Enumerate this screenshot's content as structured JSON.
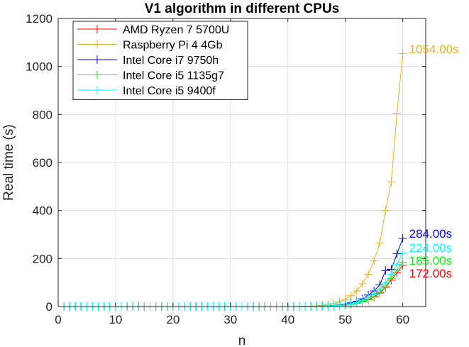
{
  "chart_data": {
    "type": "line",
    "title": "V1 algorithm in different CPUs",
    "xlabel": "n",
    "ylabel": "Real time (s)",
    "xlim": [
      0,
      64
    ],
    "ylim": [
      0,
      1200
    ],
    "xticks": [
      0,
      10,
      20,
      30,
      40,
      50,
      60
    ],
    "yticks": [
      0,
      200,
      400,
      600,
      800,
      1000,
      1200
    ],
    "grid": true,
    "legend_position": "top-left",
    "marker": "+",
    "series": [
      {
        "name": "AMD Ryzen 7 5700U",
        "color": "#ff0000",
        "x": [
          1,
          2,
          3,
          4,
          5,
          6,
          7,
          8,
          9,
          10,
          11,
          12,
          13,
          14,
          15,
          16,
          17,
          18,
          19,
          20,
          21,
          22,
          23,
          24,
          25,
          26,
          27,
          28,
          29,
          30,
          31,
          32,
          33,
          34,
          35,
          36,
          37,
          38,
          39,
          40,
          41,
          42,
          43,
          44,
          45,
          46,
          47,
          48,
          49,
          50,
          51,
          52,
          53,
          54,
          55,
          56,
          57,
          58,
          59,
          60
        ],
        "y": [
          0,
          0,
          0,
          0,
          0,
          0,
          0,
          0,
          0,
          0,
          0,
          0,
          0,
          0,
          0,
          0,
          0,
          0,
          0,
          0,
          0,
          0,
          0,
          0,
          0,
          0,
          0,
          0,
          0,
          0,
          0,
          0,
          0,
          0,
          0,
          0,
          0,
          0,
          0,
          0,
          0,
          0,
          0.4,
          0.6,
          0.9,
          1.3,
          2,
          3,
          4.5,
          6.7,
          10,
          14,
          20,
          28,
          40,
          56,
          80,
          110,
          140,
          172
        ],
        "end_label": "172.00s"
      },
      {
        "name": "Raspberry Pi 4 4Gb",
        "color": "#edb120",
        "x": [
          1,
          2,
          3,
          4,
          5,
          6,
          7,
          8,
          9,
          10,
          11,
          12,
          13,
          14,
          15,
          16,
          17,
          18,
          19,
          20,
          21,
          22,
          23,
          24,
          25,
          26,
          27,
          28,
          29,
          30,
          31,
          32,
          33,
          34,
          35,
          36,
          37,
          38,
          39,
          40,
          41,
          42,
          43,
          44,
          45,
          46,
          47,
          48,
          49,
          50,
          51,
          52,
          53,
          54,
          55,
          56,
          57,
          58,
          59,
          60
        ],
        "y": [
          0,
          0,
          0,
          0,
          0,
          0,
          0,
          0,
          0,
          0,
          0,
          0,
          0,
          0,
          0,
          0,
          0,
          0,
          0,
          0,
          0,
          0,
          0,
          0,
          0,
          0,
          0,
          0,
          0,
          0,
          0,
          0,
          0,
          0,
          0,
          0,
          0,
          0,
          0,
          0,
          0,
          0.5,
          1,
          2,
          3,
          5,
          8,
          13,
          20,
          30,
          45,
          65,
          95,
          135,
          190,
          265,
          400,
          520,
          805,
          1054
        ],
        "end_label": "1054.00s"
      },
      {
        "name": "Intel Core i7 9750h",
        "color": "#0000ff",
        "x": [
          1,
          2,
          3,
          4,
          5,
          6,
          7,
          8,
          9,
          10,
          11,
          12,
          13,
          14,
          15,
          16,
          17,
          18,
          19,
          20,
          21,
          22,
          23,
          24,
          25,
          26,
          27,
          28,
          29,
          30,
          31,
          32,
          33,
          34,
          35,
          36,
          37,
          38,
          39,
          40,
          41,
          42,
          43,
          44,
          45,
          46,
          47,
          48,
          49,
          50,
          51,
          52,
          53,
          54,
          55,
          56,
          57,
          58,
          59,
          60
        ],
        "y": [
          0,
          0,
          0,
          0,
          0,
          0,
          0,
          0,
          0,
          0,
          0,
          0,
          0,
          0,
          0,
          0,
          0,
          0,
          0,
          0,
          0,
          0,
          0,
          0,
          0,
          0,
          0,
          0,
          0,
          0,
          0,
          0,
          0,
          0,
          0,
          0,
          0,
          0,
          0,
          0,
          0,
          0,
          0.5,
          0.8,
          1.2,
          2,
          3,
          4.5,
          7,
          10,
          15,
          22,
          32,
          48,
          65,
          90,
          150,
          155,
          220,
          284
        ],
        "end_label": "284.00s"
      },
      {
        "name": "Intel Core i5 1135g7",
        "color": "#00ff00",
        "x": [
          1,
          2,
          3,
          4,
          5,
          6,
          7,
          8,
          9,
          10,
          11,
          12,
          13,
          14,
          15,
          16,
          17,
          18,
          19,
          20,
          21,
          22,
          23,
          24,
          25,
          26,
          27,
          28,
          29,
          30,
          31,
          32,
          33,
          34,
          35,
          36,
          37,
          38,
          39,
          40,
          41,
          42,
          43,
          44,
          45,
          46,
          47,
          48,
          49,
          50,
          51,
          52,
          53,
          54,
          55,
          56,
          57,
          58,
          59,
          60
        ],
        "y": [
          0,
          0,
          0,
          0,
          0,
          0,
          0,
          0,
          0,
          0,
          0,
          0,
          0,
          0,
          0,
          0,
          0,
          0,
          0,
          0,
          0,
          0,
          0,
          0,
          0,
          0,
          0,
          0,
          0,
          0,
          0,
          0,
          0,
          0,
          0,
          0,
          0,
          0,
          0,
          0,
          0,
          0,
          0.4,
          0.6,
          1,
          1.4,
          2.2,
          3.2,
          5,
          7,
          10,
          15,
          22,
          30,
          42,
          60,
          85,
          118,
          150,
          185
        ],
        "end_label": "185.00s"
      },
      {
        "name": "Intel Core i5 9400f",
        "color": "#00ffff",
        "x": [
          1,
          2,
          3,
          4,
          5,
          6,
          7,
          8,
          9,
          10,
          11,
          12,
          13,
          14,
          15,
          16,
          17,
          18,
          19,
          20,
          21,
          22,
          23,
          24,
          25,
          26,
          27,
          28,
          29,
          30,
          31,
          32,
          33,
          34,
          35,
          36,
          37,
          38,
          39,
          40,
          41,
          42,
          43,
          44,
          45,
          46,
          47,
          48,
          49,
          50,
          51,
          52,
          53,
          54,
          55,
          56,
          57,
          58,
          59,
          60
        ],
        "y": [
          0,
          0,
          0,
          0,
          0,
          0,
          0,
          0,
          0,
          0,
          0,
          0,
          0,
          0,
          0,
          0,
          0,
          0,
          0,
          0,
          0,
          0,
          0,
          0,
          0,
          0,
          0,
          0,
          0,
          0,
          0,
          0,
          0,
          0,
          0,
          0,
          0,
          0,
          0,
          0,
          0,
          0,
          0.4,
          0.7,
          1,
          1.5,
          2.4,
          3.6,
          5.5,
          8,
          12,
          18,
          26,
          37,
          52,
          72,
          100,
          135,
          175,
          224
        ],
        "end_label": "224.00s"
      }
    ]
  }
}
